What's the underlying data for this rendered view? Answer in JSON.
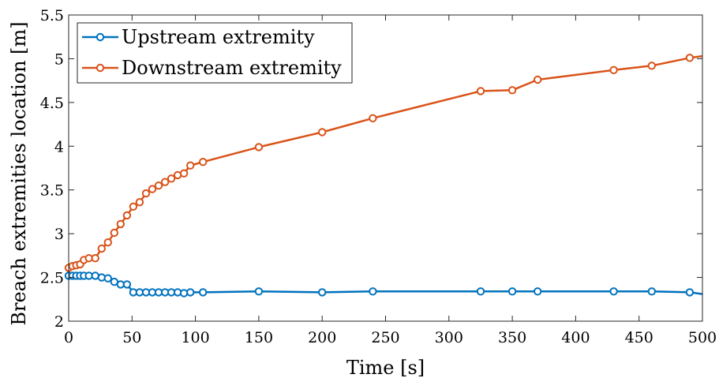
{
  "chart_data": {
    "type": "line",
    "xlabel": "Time [s]",
    "ylabel": "Breach extremities location [m]",
    "xlim": [
      0,
      500
    ],
    "ylim": [
      2,
      5.5
    ],
    "xticks": [
      0,
      50,
      100,
      150,
      200,
      250,
      300,
      350,
      400,
      450,
      500
    ],
    "yticks": [
      2,
      2.5,
      3,
      3.5,
      4,
      4.5,
      5,
      5.5
    ],
    "xtick_labels": [
      "0",
      "50",
      "100",
      "150",
      "200",
      "250",
      "300",
      "350",
      "400",
      "450",
      "500"
    ],
    "ytick_labels": [
      "2",
      "2.5",
      "3",
      "3.5",
      "4",
      "4.5",
      "5",
      "5.5"
    ],
    "grid": false,
    "legend_position": "top-left",
    "series": [
      {
        "name": "Upstream extremity",
        "color": "#0072BD",
        "marker": "circle",
        "points": [
          [
            0,
            2.52
          ],
          [
            3,
            2.52
          ],
          [
            6,
            2.52
          ],
          [
            9,
            2.52
          ],
          [
            12,
            2.52
          ],
          [
            16,
            2.52
          ],
          [
            21,
            2.52
          ],
          [
            26,
            2.5
          ],
          [
            31,
            2.49
          ],
          [
            36,
            2.45
          ],
          [
            41,
            2.42
          ],
          [
            46,
            2.42
          ],
          [
            51,
            2.33
          ],
          [
            56,
            2.33
          ],
          [
            61,
            2.33
          ],
          [
            66,
            2.33
          ],
          [
            71,
            2.33
          ],
          [
            76,
            2.33
          ],
          [
            81,
            2.33
          ],
          [
            86,
            2.33
          ],
          [
            91,
            2.32
          ],
          [
            96,
            2.33
          ],
          [
            106,
            2.33
          ],
          [
            150,
            2.34
          ],
          [
            200,
            2.33
          ],
          [
            240,
            2.34
          ],
          [
            325,
            2.34
          ],
          [
            350,
            2.34
          ],
          [
            370,
            2.34
          ],
          [
            430,
            2.34
          ],
          [
            460,
            2.34
          ],
          [
            490,
            2.33
          ],
          [
            500,
            2.31
          ]
        ],
        "marker_skip_last": true
      },
      {
        "name": "Downstream extremity",
        "color": "#D95319",
        "marker": "circle",
        "points": [
          [
            0,
            2.61
          ],
          [
            3,
            2.63
          ],
          [
            6,
            2.64
          ],
          [
            9,
            2.65
          ],
          [
            12,
            2.7
          ],
          [
            16,
            2.72
          ],
          [
            21,
            2.72
          ],
          [
            26,
            2.83
          ],
          [
            31,
            2.9
          ],
          [
            36,
            3.01
          ],
          [
            41,
            3.11
          ],
          [
            46,
            3.21
          ],
          [
            51,
            3.31
          ],
          [
            56,
            3.36
          ],
          [
            61,
            3.46
          ],
          [
            66,
            3.51
          ],
          [
            71,
            3.55
          ],
          [
            76,
            3.59
          ],
          [
            81,
            3.63
          ],
          [
            86,
            3.67
          ],
          [
            91,
            3.69
          ],
          [
            96,
            3.78
          ],
          [
            106,
            3.82
          ],
          [
            150,
            3.99
          ],
          [
            200,
            4.16
          ],
          [
            240,
            4.32
          ],
          [
            325,
            4.63
          ],
          [
            350,
            4.64
          ],
          [
            370,
            4.76
          ],
          [
            430,
            4.87
          ],
          [
            460,
            4.92
          ],
          [
            490,
            5.01
          ],
          [
            500,
            5.03
          ]
        ],
        "marker_skip_last": true
      }
    ]
  }
}
